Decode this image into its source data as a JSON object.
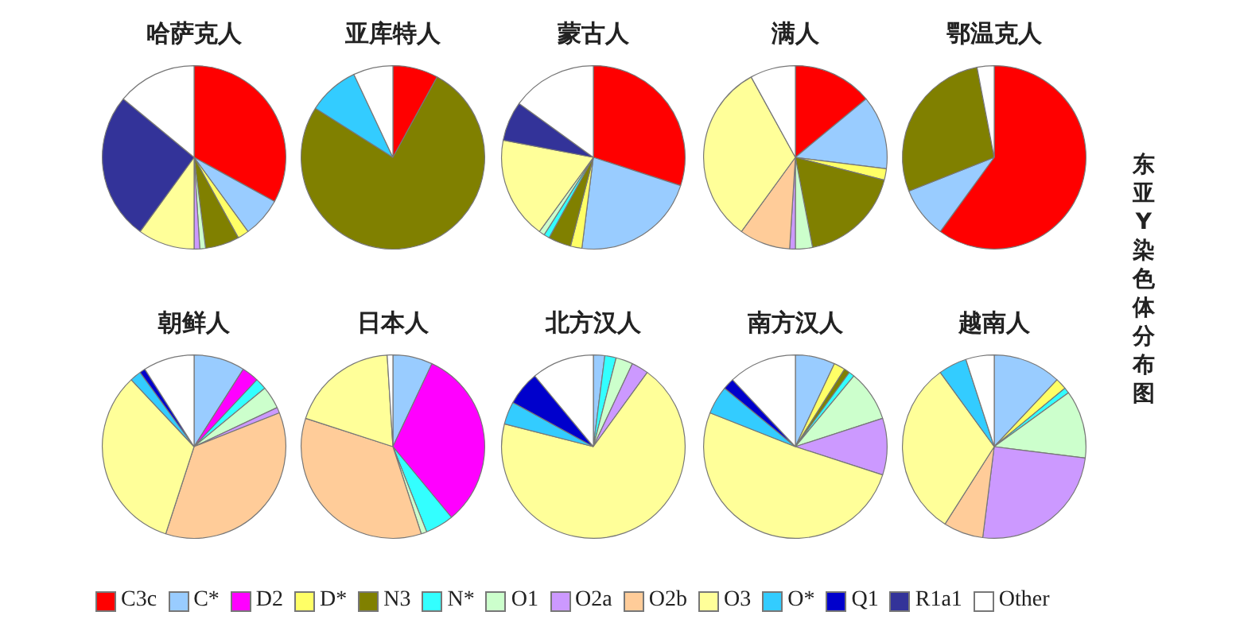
{
  "chart_data": [
    {
      "type": "pie",
      "title": "哈萨克人",
      "categories": [
        "C3c",
        "C*",
        "D2",
        "D*",
        "N3",
        "N*",
        "O1",
        "O2a",
        "O2b",
        "O3",
        "O*",
        "Q1",
        "R1a1",
        "Other"
      ],
      "values": [
        33,
        7,
        0,
        2,
        6,
        0,
        1,
        1,
        0,
        10,
        0,
        0,
        26,
        14
      ],
      "colors": [
        "#ff0000",
        "#99ccff",
        "#ff00ff",
        "#ffff66",
        "#808000",
        "#33ffff",
        "#ccffcc",
        "#cc99ff",
        "#ffcc99",
        "#ffff99",
        "#33ccff",
        "#0000cc",
        "#333399",
        "#ffffff"
      ],
      "legend": "bottom"
    },
    {
      "type": "pie",
      "title": "亚库特人",
      "values": [
        8,
        0,
        0,
        0,
        76,
        0,
        0,
        0,
        0,
        0,
        9,
        0,
        0,
        7
      ]
    },
    {
      "type": "pie",
      "title": "蒙古人",
      "values": [
        30,
        22,
        0,
        2,
        4,
        1,
        1,
        0,
        0,
        18,
        0,
        0,
        7,
        15
      ]
    },
    {
      "type": "pie",
      "title": "满人",
      "values": [
        14,
        13,
        0,
        2,
        18,
        0,
        3,
        1,
        9,
        32,
        0,
        0,
        0,
        8
      ]
    },
    {
      "type": "pie",
      "title": "鄂温克人",
      "values": [
        60,
        9,
        0,
        0,
        28,
        0,
        0,
        0,
        0,
        0,
        0,
        0,
        0,
        3
      ],
      "annotations": [
        "东亚Y染色体分布图"
      ]
    },
    {
      "type": "pie",
      "title": "朝鲜人",
      "values": [
        0,
        9,
        3,
        0,
        0,
        2,
        4,
        1,
        36,
        33,
        2,
        1,
        0,
        9
      ]
    },
    {
      "type": "pie",
      "title": "日本人",
      "values": [
        0,
        7,
        32,
        0,
        0,
        5,
        1,
        0,
        35,
        19,
        0,
        0,
        0,
        1
      ]
    },
    {
      "type": "pie",
      "title": "北方汉人",
      "values": [
        0,
        2,
        0,
        0,
        0,
        2,
        3,
        3,
        0,
        69,
        4,
        6,
        0,
        11
      ]
    },
    {
      "type": "pie",
      "title": "南方汉人",
      "values": [
        0,
        7,
        0,
        2,
        1,
        1,
        9,
        10,
        0,
        51,
        5,
        2,
        0,
        12
      ]
    },
    {
      "type": "pie",
      "title": "越南人",
      "values": [
        0,
        12,
        0,
        2,
        0,
        1,
        12,
        25,
        7,
        31,
        5,
        0,
        0,
        5
      ]
    }
  ]
}
